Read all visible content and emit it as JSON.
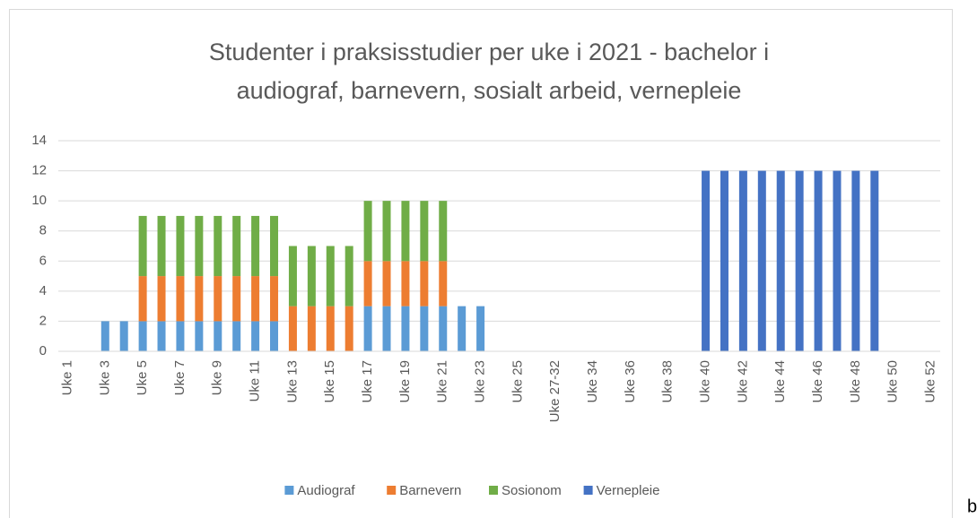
{
  "chart_data": {
    "type": "stacked_bar",
    "title": [
      "Studenter i praksisstudier per uke i 2021 - bachelor i",
      "audiograf, barnevern, sosialt arbeid, vernepleie"
    ],
    "categories": [
      "Uke 1",
      null,
      "Uke 3",
      null,
      "Uke 5",
      null,
      "Uke 7",
      null,
      "Uke 9",
      null,
      "Uke 11",
      null,
      "Uke 13",
      null,
      "Uke 15",
      null,
      "Uke 17",
      null,
      "Uke 19",
      null,
      "Uke 21",
      null,
      "Uke 23",
      null,
      "Uke 25",
      null,
      "Uke 27-32",
      null,
      "Uke 34",
      null,
      "Uke 36",
      null,
      "Uke 38",
      null,
      "Uke 40",
      null,
      "Uke 42",
      null,
      "Uke 44",
      null,
      "Uke 46",
      null,
      "Uke 48",
      null,
      "Uke 50",
      null,
      "Uke 52"
    ],
    "series": [
      {
        "name": "Audiograf",
        "color": "#5b9bd5",
        "values": [
          null,
          null,
          2,
          2,
          2,
          2,
          2,
          2,
          2,
          2,
          2,
          2,
          null,
          null,
          null,
          null,
          3,
          3,
          3,
          3,
          3,
          3,
          3,
          null,
          null,
          null,
          null,
          null,
          null,
          null,
          null,
          null,
          null,
          null,
          null,
          null,
          null,
          null,
          null,
          null,
          null,
          null,
          null,
          null,
          null,
          null,
          null
        ]
      },
      {
        "name": "Barnevern",
        "color": "#ed7d31",
        "values": [
          null,
          null,
          null,
          null,
          3,
          3,
          3,
          3,
          3,
          3,
          3,
          3,
          3,
          3,
          3,
          3,
          3,
          3,
          3,
          3,
          3,
          null,
          null,
          null,
          null,
          null,
          null,
          null,
          null,
          null,
          null,
          null,
          null,
          null,
          null,
          null,
          null,
          null,
          null,
          null,
          null,
          null,
          null,
          null,
          null,
          null,
          null
        ]
      },
      {
        "name": "Sosionom",
        "color": "#70ad47",
        "values": [
          null,
          null,
          null,
          null,
          4,
          4,
          4,
          4,
          4,
          4,
          4,
          4,
          4,
          4,
          4,
          4,
          4,
          4,
          4,
          4,
          4,
          null,
          null,
          null,
          null,
          null,
          null,
          null,
          null,
          null,
          null,
          null,
          null,
          null,
          null,
          null,
          null,
          null,
          null,
          null,
          null,
          null,
          null,
          null,
          null,
          null,
          null
        ]
      },
      {
        "name": "Vernepleie",
        "color": "#4472c4",
        "values": [
          null,
          null,
          null,
          null,
          null,
          null,
          null,
          null,
          null,
          null,
          null,
          null,
          null,
          null,
          null,
          null,
          null,
          null,
          null,
          null,
          null,
          null,
          null,
          null,
          null,
          null,
          null,
          null,
          null,
          null,
          null,
          null,
          null,
          null,
          12,
          12,
          12,
          12,
          12,
          12,
          12,
          12,
          12,
          12,
          null,
          null,
          null
        ]
      }
    ],
    "ylim": [
      0,
      14
    ],
    "yticks": [
      0,
      2,
      4,
      6,
      8,
      10,
      12,
      14
    ],
    "grid": true,
    "legend": "bottom"
  },
  "stray_text": "b"
}
